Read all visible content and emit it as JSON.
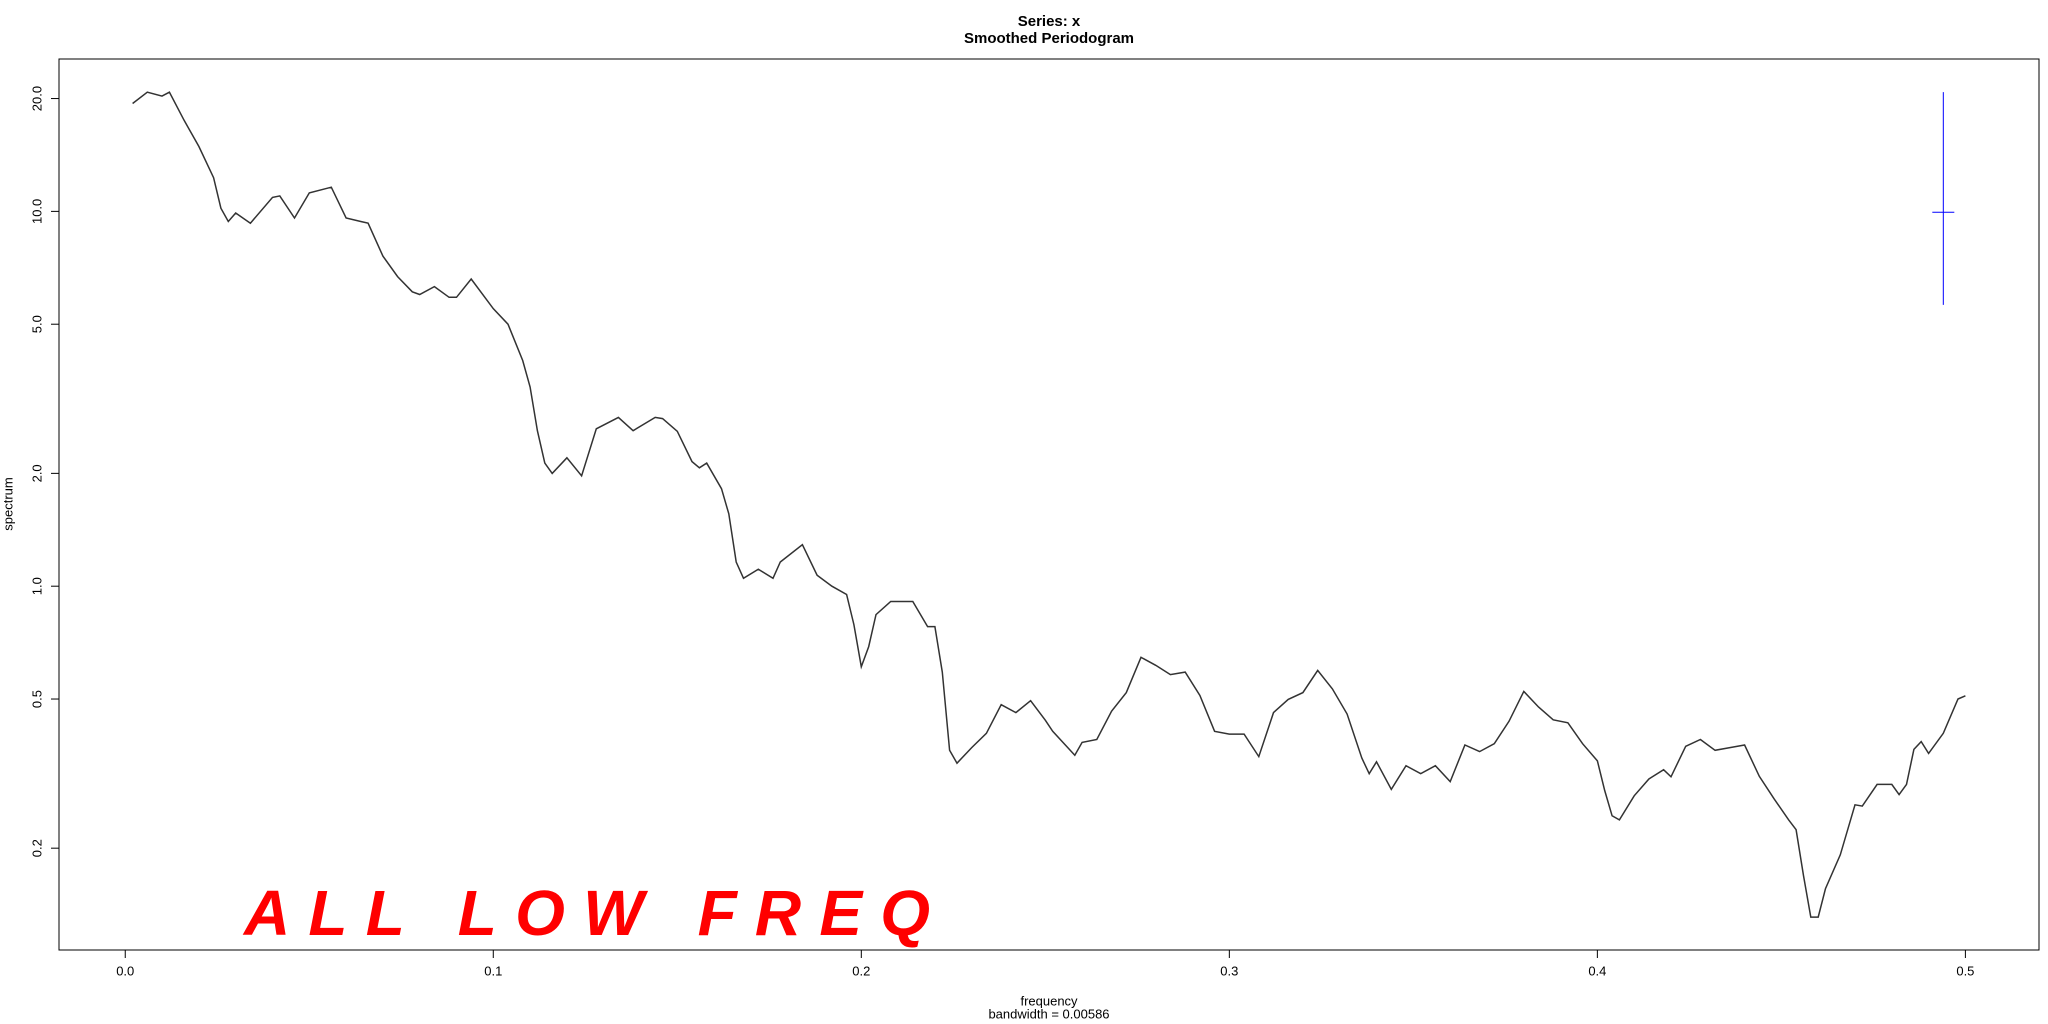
{
  "chart_data": {
    "type": "line",
    "title": "Series: x",
    "subtitle": "Smoothed Periodogram",
    "x_label": "frequency",
    "x_sublabel": "bandwidth = 0.00586",
    "y_label": "spectrum",
    "annotation": "ALL LOW FREQ",
    "annotation_color": "#ff0000",
    "log_y": true,
    "grid": false,
    "xlim": [
      -0.018,
      0.52
    ],
    "ylim": [
      0.107,
      25.5
    ],
    "xticks": [
      {
        "value": 0,
        "label": "0.0"
      },
      0.1,
      0.2,
      0.3,
      0.4,
      0.5
    ],
    "yticks": [
      0.2,
      0.5,
      {
        "value": 1,
        "label": "1.0"
      },
      {
        "value": 2,
        "label": "2.0"
      },
      {
        "value": 5,
        "label": "5.0"
      },
      {
        "value": 10,
        "label": "10.0"
      },
      {
        "value": 20,
        "label": "20.0"
      }
    ],
    "ci_bar": {
      "x": 0.494,
      "center": 9.95,
      "upper": 20.8,
      "lower": 5.63,
      "color": "#0000ff"
    },
    "series": [
      {
        "name": "x",
        "color": "#333333",
        "x": [
          0.002,
          0.006,
          0.01,
          0.012,
          0.016,
          0.02,
          0.024,
          0.026,
          0.028,
          0.03,
          0.034,
          0.04,
          0.042,
          0.046,
          0.05,
          0.056,
          0.06,
          0.064,
          0.066,
          0.07,
          0.074,
          0.078,
          0.08,
          0.084,
          0.088,
          0.09,
          0.094,
          0.1,
          0.104,
          0.108,
          0.11,
          0.112,
          0.114,
          0.116,
          0.12,
          0.124,
          0.128,
          0.134,
          0.138,
          0.144,
          0.146,
          0.15,
          0.154,
          0.156,
          0.158,
          0.162,
          0.164,
          0.166,
          0.168,
          0.172,
          0.176,
          0.178,
          0.184,
          0.188,
          0.192,
          0.196,
          0.198,
          0.2,
          0.202,
          0.204,
          0.208,
          0.214,
          0.218,
          0.22,
          0.222,
          0.224,
          0.226,
          0.23,
          0.234,
          0.238,
          0.242,
          0.246,
          0.25,
          0.252,
          0.258,
          0.26,
          0.264,
          0.268,
          0.272,
          0.276,
          0.28,
          0.284,
          0.288,
          0.292,
          0.296,
          0.3,
          0.304,
          0.308,
          0.312,
          0.316,
          0.32,
          0.324,
          0.328,
          0.332,
          0.336,
          0.338,
          0.34,
          0.344,
          0.348,
          0.352,
          0.356,
          0.36,
          0.364,
          0.368,
          0.372,
          0.376,
          0.38,
          0.384,
          0.388,
          0.392,
          0.396,
          0.4,
          0.402,
          0.404,
          0.406,
          0.41,
          0.414,
          0.418,
          0.42,
          0.424,
          0.428,
          0.432,
          0.436,
          0.44,
          0.444,
          0.448,
          0.452,
          0.454,
          0.456,
          0.458,
          0.46,
          0.462,
          0.466,
          0.47,
          0.472,
          0.476,
          0.48,
          0.482,
          0.484,
          0.486,
          0.488,
          0.49,
          0.494,
          0.498,
          0.5
        ],
        "values": [
          19.4,
          20.8,
          20.3,
          20.8,
          17.5,
          14.9,
          12.3,
          10.2,
          9.4,
          9.9,
          9.3,
          10.9,
          11.0,
          9.6,
          11.2,
          11.6,
          9.6,
          9.4,
          9.3,
          7.6,
          6.7,
          6.1,
          6.0,
          6.3,
          5.9,
          5.9,
          6.6,
          5.5,
          5.0,
          4.0,
          3.4,
          2.6,
          2.13,
          2.0,
          2.2,
          1.97,
          2.63,
          2.82,
          2.6,
          2.82,
          2.8,
          2.59,
          2.15,
          2.07,
          2.13,
          1.82,
          1.56,
          1.16,
          1.05,
          1.11,
          1.05,
          1.16,
          1.29,
          1.07,
          1.0,
          0.95,
          0.79,
          0.61,
          0.69,
          0.84,
          0.91,
          0.91,
          0.78,
          0.78,
          0.59,
          0.365,
          0.337,
          0.371,
          0.405,
          0.483,
          0.46,
          0.495,
          0.439,
          0.41,
          0.354,
          0.383,
          0.39,
          0.464,
          0.52,
          0.646,
          0.615,
          0.581,
          0.59,
          0.511,
          0.41,
          0.403,
          0.403,
          0.351,
          0.46,
          0.499,
          0.52,
          0.596,
          0.532,
          0.456,
          0.348,
          0.316,
          0.34,
          0.287,
          0.332,
          0.316,
          0.332,
          0.301,
          0.377,
          0.362,
          0.38,
          0.436,
          0.524,
          0.476,
          0.44,
          0.432,
          0.38,
          0.342,
          0.285,
          0.244,
          0.238,
          0.276,
          0.306,
          0.324,
          0.31,
          0.374,
          0.39,
          0.365,
          0.371,
          0.377,
          0.311,
          0.271,
          0.238,
          0.224,
          0.169,
          0.131,
          0.131,
          0.156,
          0.192,
          0.261,
          0.259,
          0.296,
          0.296,
          0.278,
          0.296,
          0.367,
          0.385,
          0.358,
          0.405,
          0.5,
          0.51
        ]
      }
    ]
  }
}
